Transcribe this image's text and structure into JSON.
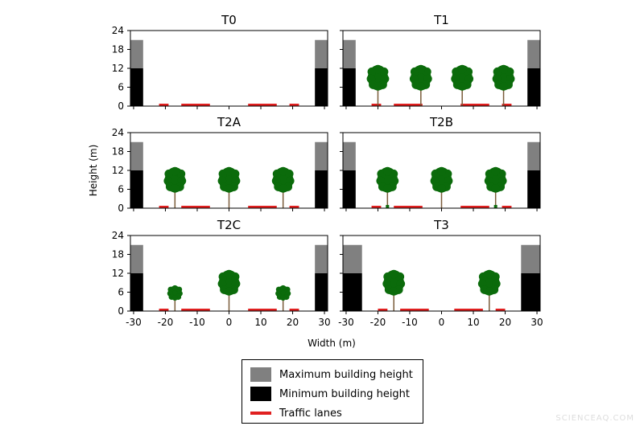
{
  "chart_data": {
    "type": "diagram",
    "xlabel": "Width (m)",
    "ylabel": "Height (m)",
    "xlim": [
      -31,
      31
    ],
    "ylim": [
      0,
      24
    ],
    "xticks": [
      -30,
      -20,
      -10,
      0,
      10,
      20,
      30
    ],
    "yticks": [
      0,
      6,
      12,
      18,
      24
    ],
    "colors": {
      "max_building": "#808080",
      "min_building": "#000000",
      "lane": "#e02020",
      "canopy": "#0b6b0b",
      "trunk": "#7a5c3a"
    },
    "panels": [
      {
        "title": "T0",
        "building_width": 4,
        "building_min": 12,
        "building_max": 21,
        "lanes": [
          [
            -22,
            -19
          ],
          [
            -15,
            -6
          ],
          [
            6,
            15
          ],
          [
            19,
            22
          ]
        ],
        "trees": []
      },
      {
        "title": "T1",
        "building_width": 4,
        "building_min": 12,
        "building_max": 21,
        "lanes": [
          [
            -22,
            -19
          ],
          [
            -15,
            -6
          ],
          [
            6,
            15
          ],
          [
            19,
            22
          ]
        ],
        "trees": [
          {
            "x": -20,
            "h": 13
          },
          {
            "x": -6.5,
            "h": 13
          },
          {
            "x": 6.5,
            "h": 13
          },
          {
            "x": 19.5,
            "h": 13
          }
        ]
      },
      {
        "title": "T2A",
        "building_width": 4,
        "building_min": 12,
        "building_max": 21,
        "lanes": [
          [
            -22,
            -19
          ],
          [
            -15,
            -6
          ],
          [
            6,
            15
          ],
          [
            19,
            22
          ]
        ],
        "trees": [
          {
            "x": -17,
            "h": 13
          },
          {
            "x": 0,
            "h": 13
          },
          {
            "x": 17,
            "h": 13
          }
        ]
      },
      {
        "title": "T2B",
        "building_width": 4,
        "building_min": 12,
        "building_max": 21,
        "lanes": [
          [
            -22,
            -19
          ],
          [
            -15,
            -6
          ],
          [
            6,
            15
          ],
          [
            19,
            22
          ]
        ],
        "trees": [
          {
            "x": -17,
            "h": 13,
            "base": true
          },
          {
            "x": 0,
            "h": 13
          },
          {
            "x": 17,
            "h": 13,
            "base": true
          }
        ]
      },
      {
        "title": "T2C",
        "building_width": 4,
        "building_min": 12,
        "building_max": 21,
        "lanes": [
          [
            -22,
            -19
          ],
          [
            -15,
            -6
          ],
          [
            6,
            15
          ],
          [
            19,
            22
          ]
        ],
        "trees": [
          {
            "x": -17,
            "h": 8
          },
          {
            "x": 0,
            "h": 13
          },
          {
            "x": 17,
            "h": 8
          }
        ]
      },
      {
        "title": "T3",
        "building_width": 6,
        "building_min": 12,
        "building_max": 21,
        "lanes": [
          [
            -20,
            -17
          ],
          [
            -13,
            -4
          ],
          [
            4,
            13
          ],
          [
            17,
            20
          ]
        ],
        "trees": [
          {
            "x": -15,
            "h": 13
          },
          {
            "x": 15,
            "h": 13
          }
        ]
      }
    ]
  },
  "legend": {
    "max": "Maximum building height",
    "min": "Minimum building height",
    "lanes": "Traffic lanes"
  },
  "watermark": "SCIENCEAQ.COM"
}
